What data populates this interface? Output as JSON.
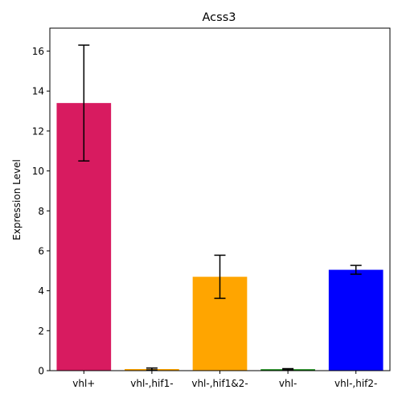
{
  "chart_data": {
    "type": "bar",
    "title": "Acss3",
    "xlabel": "",
    "ylabel": "Expression Level",
    "ylim": [
      0,
      17.15
    ],
    "yticks": [
      0,
      2,
      4,
      6,
      8,
      10,
      12,
      14,
      16
    ],
    "grid": false,
    "categories": [
      "vhl+",
      "vhl-,hif1-",
      "vhl-,hif1&2-",
      "vhl-",
      "vhl-,hif2-"
    ],
    "values": [
      13.4,
      0.08,
      4.7,
      0.07,
      5.05
    ],
    "errors": [
      2.9,
      0.05,
      1.08,
      0.03,
      0.22
    ],
    "colors": [
      "#d81b60",
      "#ffa500",
      "#ffa500",
      "#008000",
      "#0000ff"
    ]
  }
}
